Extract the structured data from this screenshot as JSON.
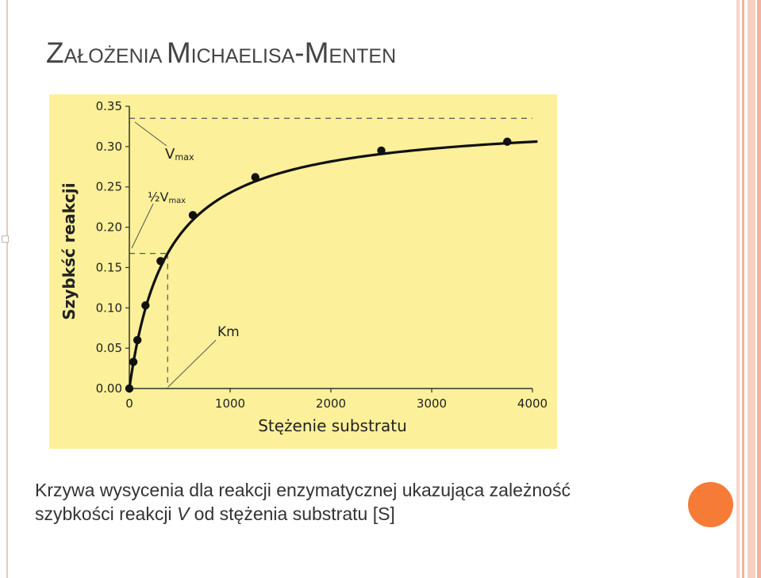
{
  "slide": {
    "title_parts": [
      {
        "text": "Z",
        "small": false
      },
      {
        "text": "AŁOŻENIA ",
        "small": true
      },
      {
        "text": "M",
        "small": false
      },
      {
        "text": "ICHAELISA",
        "small": true
      },
      {
        "text": "-M",
        "small": false
      },
      {
        "text": "ENTEN",
        "small": true
      }
    ],
    "caption_line1": "Krzywa wysycenia dla reakcji enzymatycznej ukazująca zależność",
    "caption_line2_a": "szybkości reakcji ",
    "caption_line2_italic": "V",
    "caption_line2_b": " od stężenia substratu [S]",
    "colors": {
      "chart_background": "#fcf09a",
      "accent_circle": "#f57b37",
      "title": "#444444"
    }
  },
  "chart_data": {
    "type": "line",
    "xlabel": "Stężenie substratu",
    "ylabel": "Szybkść reakcji",
    "xlim": [
      0,
      4000
    ],
    "ylim": [
      0,
      0.35
    ],
    "x_ticks": [
      0,
      1000,
      2000,
      3000,
      4000
    ],
    "x_tick_labels": [
      "0",
      "1000",
      "2000",
      "3000",
      "4000"
    ],
    "y_ticks": [
      0,
      0.05,
      0.1,
      0.15,
      0.2,
      0.25,
      0.3,
      0.35
    ],
    "y_tick_labels": [
      "0.00",
      "0.05",
      "0.10",
      "0.15",
      "0.20",
      "0.25",
      "0.30",
      "0.35"
    ],
    "vmax": 0.335,
    "km": 380,
    "curve_x_max": 4050,
    "points": [
      {
        "x": 0,
        "y": 0.0
      },
      {
        "x": 40,
        "y": 0.033
      },
      {
        "x": 80,
        "y": 0.06
      },
      {
        "x": 160,
        "y": 0.103
      },
      {
        "x": 310,
        "y": 0.158
      },
      {
        "x": 630,
        "y": 0.215
      },
      {
        "x": 1250,
        "y": 0.262
      },
      {
        "x": 2500,
        "y": 0.295
      },
      {
        "x": 3750,
        "y": 0.306
      }
    ],
    "annotations": [
      {
        "id": "vmax",
        "main": "V",
        "sub": "max"
      },
      {
        "id": "half-vmax",
        "main": "½V",
        "sub": "max"
      },
      {
        "id": "km",
        "main": "Km",
        "sub": ""
      }
    ],
    "grid": false,
    "legend": "none"
  }
}
